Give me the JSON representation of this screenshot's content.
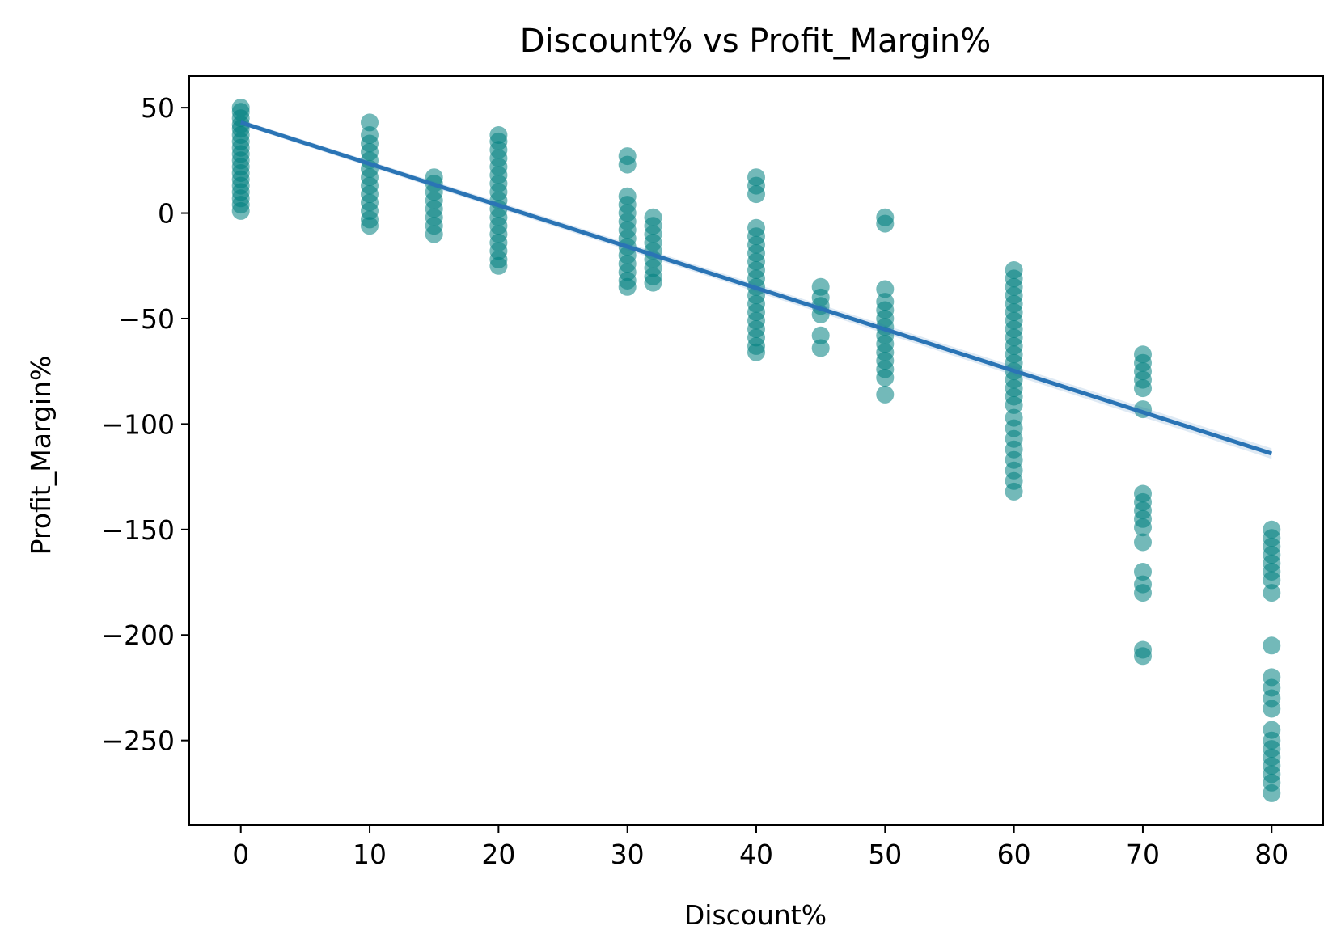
{
  "chart_data": {
    "type": "scatter",
    "title": "Discount% vs Profit_Margin%",
    "xlabel": "Discount%",
    "ylabel": "Profit_Margin%",
    "xlim": [
      -4,
      84
    ],
    "ylim": [
      -290,
      65
    ],
    "xticks": [
      0,
      10,
      20,
      30,
      40,
      50,
      60,
      70,
      80
    ],
    "yticks": [
      50,
      0,
      -50,
      -100,
      -150,
      -200,
      -250
    ],
    "xtick_labels": [
      "0",
      "10",
      "20",
      "30",
      "40",
      "50",
      "60",
      "70",
      "80"
    ],
    "ytick_labels": [
      "50",
      "0",
      "−50",
      "−100",
      "−150",
      "−200",
      "−250"
    ],
    "grid": false,
    "point_color": "#008080",
    "line_color": "#2a74b5",
    "points": [
      {
        "x": 0,
        "y": 50
      },
      {
        "x": 0,
        "y": 48
      },
      {
        "x": 0,
        "y": 45
      },
      {
        "x": 0,
        "y": 42
      },
      {
        "x": 0,
        "y": 40
      },
      {
        "x": 0,
        "y": 37
      },
      {
        "x": 0,
        "y": 34
      },
      {
        "x": 0,
        "y": 31
      },
      {
        "x": 0,
        "y": 28
      },
      {
        "x": 0,
        "y": 25
      },
      {
        "x": 0,
        "y": 22
      },
      {
        "x": 0,
        "y": 19
      },
      {
        "x": 0,
        "y": 16
      },
      {
        "x": 0,
        "y": 13
      },
      {
        "x": 0,
        "y": 10
      },
      {
        "x": 0,
        "y": 7
      },
      {
        "x": 0,
        "y": 4
      },
      {
        "x": 0,
        "y": 1
      },
      {
        "x": 10,
        "y": 43
      },
      {
        "x": 10,
        "y": 37
      },
      {
        "x": 10,
        "y": 33
      },
      {
        "x": 10,
        "y": 29
      },
      {
        "x": 10,
        "y": 25
      },
      {
        "x": 10,
        "y": 21
      },
      {
        "x": 10,
        "y": 17
      },
      {
        "x": 10,
        "y": 13
      },
      {
        "x": 10,
        "y": 9
      },
      {
        "x": 10,
        "y": 5
      },
      {
        "x": 10,
        "y": 1
      },
      {
        "x": 10,
        "y": -3
      },
      {
        "x": 10,
        "y": -6
      },
      {
        "x": 15,
        "y": 17
      },
      {
        "x": 15,
        "y": 14
      },
      {
        "x": 15,
        "y": 10
      },
      {
        "x": 15,
        "y": 6
      },
      {
        "x": 15,
        "y": 2
      },
      {
        "x": 15,
        "y": -2
      },
      {
        "x": 15,
        "y": -6
      },
      {
        "x": 15,
        "y": -10
      },
      {
        "x": 20,
        "y": 37
      },
      {
        "x": 20,
        "y": 34
      },
      {
        "x": 20,
        "y": 30
      },
      {
        "x": 20,
        "y": 26
      },
      {
        "x": 20,
        "y": 22
      },
      {
        "x": 20,
        "y": 18
      },
      {
        "x": 20,
        "y": 14
      },
      {
        "x": 20,
        "y": 10
      },
      {
        "x": 20,
        "y": 6
      },
      {
        "x": 20,
        "y": 2
      },
      {
        "x": 20,
        "y": -2
      },
      {
        "x": 20,
        "y": -6
      },
      {
        "x": 20,
        "y": -10
      },
      {
        "x": 20,
        "y": -14
      },
      {
        "x": 20,
        "y": -18
      },
      {
        "x": 20,
        "y": -22
      },
      {
        "x": 20,
        "y": -25
      },
      {
        "x": 30,
        "y": 27
      },
      {
        "x": 30,
        "y": 23
      },
      {
        "x": 30,
        "y": 8
      },
      {
        "x": 30,
        "y": 4
      },
      {
        "x": 30,
        "y": 0
      },
      {
        "x": 30,
        "y": -4
      },
      {
        "x": 30,
        "y": -8
      },
      {
        "x": 30,
        "y": -12
      },
      {
        "x": 30,
        "y": -16
      },
      {
        "x": 30,
        "y": -20
      },
      {
        "x": 30,
        "y": -24
      },
      {
        "x": 30,
        "y": -28
      },
      {
        "x": 30,
        "y": -32
      },
      {
        "x": 30,
        "y": -35
      },
      {
        "x": 32,
        "y": -2
      },
      {
        "x": 32,
        "y": -6
      },
      {
        "x": 32,
        "y": -10
      },
      {
        "x": 32,
        "y": -14
      },
      {
        "x": 32,
        "y": -18
      },
      {
        "x": 32,
        "y": -22
      },
      {
        "x": 32,
        "y": -26
      },
      {
        "x": 32,
        "y": -30
      },
      {
        "x": 32,
        "y": -33
      },
      {
        "x": 40,
        "y": 17
      },
      {
        "x": 40,
        "y": 13
      },
      {
        "x": 40,
        "y": 9
      },
      {
        "x": 40,
        "y": -7
      },
      {
        "x": 40,
        "y": -11
      },
      {
        "x": 40,
        "y": -15
      },
      {
        "x": 40,
        "y": -19
      },
      {
        "x": 40,
        "y": -23
      },
      {
        "x": 40,
        "y": -27
      },
      {
        "x": 40,
        "y": -31
      },
      {
        "x": 40,
        "y": -35
      },
      {
        "x": 40,
        "y": -39
      },
      {
        "x": 40,
        "y": -43
      },
      {
        "x": 40,
        "y": -47
      },
      {
        "x": 40,
        "y": -51
      },
      {
        "x": 40,
        "y": -55
      },
      {
        "x": 40,
        "y": -59
      },
      {
        "x": 40,
        "y": -63
      },
      {
        "x": 40,
        "y": -66
      },
      {
        "x": 45,
        "y": -35
      },
      {
        "x": 45,
        "y": -40
      },
      {
        "x": 45,
        "y": -44
      },
      {
        "x": 45,
        "y": -48
      },
      {
        "x": 45,
        "y": -58
      },
      {
        "x": 45,
        "y": -64
      },
      {
        "x": 50,
        "y": -2
      },
      {
        "x": 50,
        "y": -5
      },
      {
        "x": 50,
        "y": -36
      },
      {
        "x": 50,
        "y": -42
      },
      {
        "x": 50,
        "y": -46
      },
      {
        "x": 50,
        "y": -50
      },
      {
        "x": 50,
        "y": -54
      },
      {
        "x": 50,
        "y": -58
      },
      {
        "x": 50,
        "y": -62
      },
      {
        "x": 50,
        "y": -66
      },
      {
        "x": 50,
        "y": -70
      },
      {
        "x": 50,
        "y": -74
      },
      {
        "x": 50,
        "y": -78
      },
      {
        "x": 50,
        "y": -86
      },
      {
        "x": 60,
        "y": -27
      },
      {
        "x": 60,
        "y": -31
      },
      {
        "x": 60,
        "y": -35
      },
      {
        "x": 60,
        "y": -39
      },
      {
        "x": 60,
        "y": -43
      },
      {
        "x": 60,
        "y": -47
      },
      {
        "x": 60,
        "y": -51
      },
      {
        "x": 60,
        "y": -55
      },
      {
        "x": 60,
        "y": -59
      },
      {
        "x": 60,
        "y": -63
      },
      {
        "x": 60,
        "y": -67
      },
      {
        "x": 60,
        "y": -71
      },
      {
        "x": 60,
        "y": -75
      },
      {
        "x": 60,
        "y": -79
      },
      {
        "x": 60,
        "y": -83
      },
      {
        "x": 60,
        "y": -87
      },
      {
        "x": 60,
        "y": -91
      },
      {
        "x": 60,
        "y": -97
      },
      {
        "x": 60,
        "y": -102
      },
      {
        "x": 60,
        "y": -107
      },
      {
        "x": 60,
        "y": -112
      },
      {
        "x": 60,
        "y": -117
      },
      {
        "x": 60,
        "y": -122
      },
      {
        "x": 60,
        "y": -127
      },
      {
        "x": 60,
        "y": -132
      },
      {
        "x": 70,
        "y": -67
      },
      {
        "x": 70,
        "y": -71
      },
      {
        "x": 70,
        "y": -75
      },
      {
        "x": 70,
        "y": -79
      },
      {
        "x": 70,
        "y": -83
      },
      {
        "x": 70,
        "y": -93
      },
      {
        "x": 70,
        "y": -133
      },
      {
        "x": 70,
        "y": -137
      },
      {
        "x": 70,
        "y": -141
      },
      {
        "x": 70,
        "y": -145
      },
      {
        "x": 70,
        "y": -149
      },
      {
        "x": 70,
        "y": -156
      },
      {
        "x": 70,
        "y": -170
      },
      {
        "x": 70,
        "y": -176
      },
      {
        "x": 70,
        "y": -180
      },
      {
        "x": 70,
        "y": -207
      },
      {
        "x": 70,
        "y": -210
      },
      {
        "x": 80,
        "y": -150
      },
      {
        "x": 80,
        "y": -154
      },
      {
        "x": 80,
        "y": -158
      },
      {
        "x": 80,
        "y": -162
      },
      {
        "x": 80,
        "y": -166
      },
      {
        "x": 80,
        "y": -170
      },
      {
        "x": 80,
        "y": -174
      },
      {
        "x": 80,
        "y": -180
      },
      {
        "x": 80,
        "y": -205
      },
      {
        "x": 80,
        "y": -220
      },
      {
        "x": 80,
        "y": -225
      },
      {
        "x": 80,
        "y": -230
      },
      {
        "x": 80,
        "y": -235
      },
      {
        "x": 80,
        "y": -245
      },
      {
        "x": 80,
        "y": -250
      },
      {
        "x": 80,
        "y": -254
      },
      {
        "x": 80,
        "y": -258
      },
      {
        "x": 80,
        "y": -262
      },
      {
        "x": 80,
        "y": -266
      },
      {
        "x": 80,
        "y": -270
      },
      {
        "x": 80,
        "y": -275
      }
    ],
    "regression": {
      "x": [
        0,
        80
      ],
      "y": [
        43,
        -114
      ]
    }
  }
}
